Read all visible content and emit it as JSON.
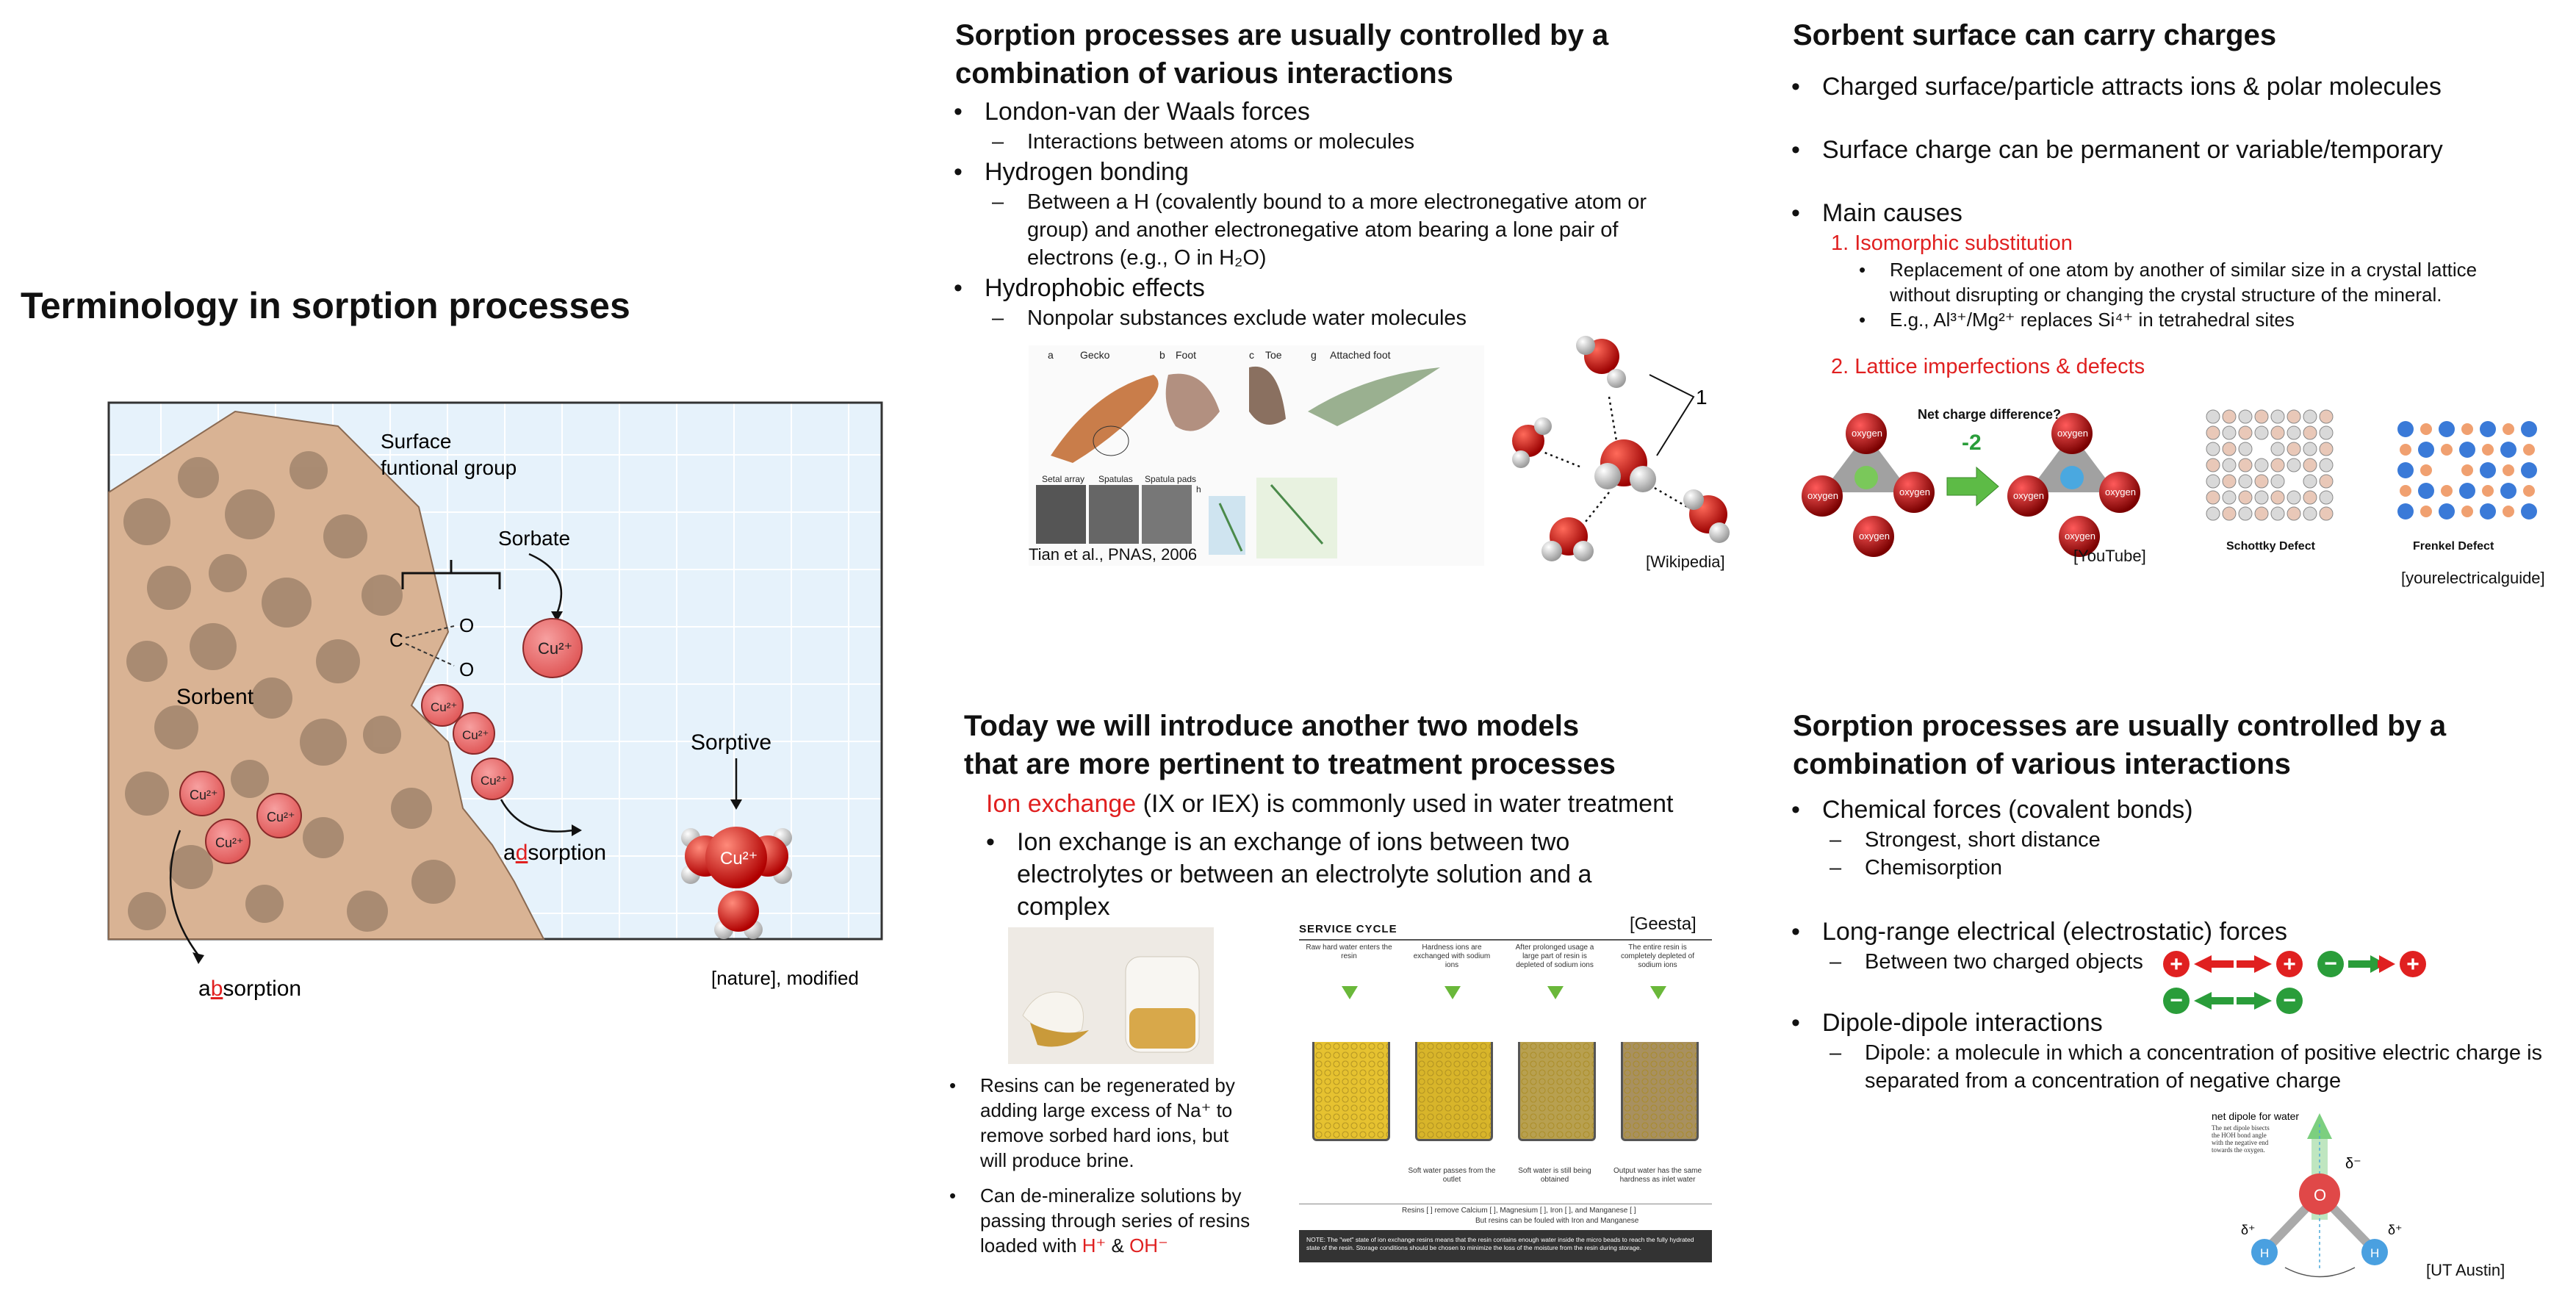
{
  "slide1": {
    "title": "Terminology in sorption processes",
    "labels": {
      "surface_group": "Surface\nfuntional group",
      "sorbate": "Sorbate",
      "sorbent": "Sorbent",
      "sorptive": "Sorptive",
      "ad_a": "a",
      "ad_d": "d",
      "ad_rest": "sorption",
      "ab_a": "a",
      "ab_b": "b",
      "ab_rest": "sorption",
      "cu": "Cu²⁺",
      "c": "C",
      "o": "O"
    },
    "citation": "[nature], modified"
  },
  "slide2": {
    "title": "Sorption processes are usually controlled by a combination of various interactions",
    "items": [
      {
        "label": "London-van der Waals forces",
        "sub": "Interactions between atoms or molecules"
      },
      {
        "label": "Hydrogen bonding",
        "sub": "Between a H (covalently bound to a more electronegative atom or group) and another electronegative atom bearing a lone pair of electrons (e.g., O in H₂O)"
      },
      {
        "label": "Hydrophobic effects",
        "sub": "Nonpolar substances exclude water molecules"
      }
    ],
    "gecko_caption": "Tian et al., PNAS, 2006",
    "gecko_labels": [
      "a",
      "Gecko",
      "b",
      "Foot",
      "c",
      "Toe",
      "g",
      "Attached foot",
      "Setal array",
      "Spatulas",
      "Spatula pads",
      "h"
    ],
    "water_citation": "[Wikipedia]",
    "water_label": "1"
  },
  "slide3": {
    "title": "Sorbent surface can carry charges",
    "bullets": [
      "Charged surface/particle attracts ions & polar molecules",
      "Surface charge can be permanent or variable/temporary",
      "Main causes"
    ],
    "cause1": "1.   Isomorphic substitution",
    "cause1_subs": [
      "Replacement of one atom by another of similar size in a crystal lattice without disrupting or changing the crystal structure of the mineral.",
      "E.g., Al³⁺/Mg²⁺ replaces Si⁴⁺ in tetrahedral sites"
    ],
    "cause2": "2.   Lattice imperfections & defects",
    "net_charge_label": "Net charge difference?",
    "net_charge_value": "-2",
    "oxygen": "oxygen",
    "cite_youtube": "[YouTube]",
    "schottky": "Schottky Defect",
    "frenkel": "Frenkel Defect",
    "cite_guide": "[yourelectricalguide]"
  },
  "slide4": {
    "title_line1": "Today we will introduce another two models",
    "title_line2": "that are more pertinent to treatment processes",
    "ion_exchange": "Ion exchange",
    "ix_rest": " (IX or IEX) is commonly used in water treatment",
    "bullet": "Ion exchange is an exchange of ions between two electrolytes or between an electrolyte solution and a complex",
    "note1": "Resins can be regenerated by adding large excess of Na⁺ to remove sorbed hard ions, but will produce brine.",
    "note2_pre": "Can de-mineralize solutions by passing through series of resins loaded with ",
    "note2_h": "H⁺",
    "note2_amp": " & ",
    "note2_oh": "OH⁻",
    "service_cycle": "SERVICE CYCLE",
    "cite_geesta": "[Geesta]",
    "cycle_steps": [
      "Raw hard water enters the resin",
      "Hardness ions are exchanged with sodium ions",
      "After prolonged usage a large part of resin is depleted of sodium ions",
      "The entire resin is completely depleted of sodium ions"
    ],
    "cycle_outputs": [
      "Soft water passes from the outlet",
      "Soft water is still being obtained",
      "Output water has the same hardness as inlet water"
    ],
    "resin_legend": "Resins [ ] remove Calcium [ ], Magnesium [ ], Iron [ ], and Manganese [ ]",
    "resin_legend2": "But resins can be fouled with Iron and Manganese",
    "note_bar": "NOTE: The \"wet\" state of ion exchange resins means that the resin contains enough water inside the micro beads to reach the fully hydrated state of the resin. Storage conditions should be chosen to minimize the loss of the moisture from the resin during storage."
  },
  "slide5": {
    "title": "Sorption processes are usually controlled by a combination of various interactions",
    "items": [
      {
        "label": "Chemical forces (covalent bonds)",
        "subs": [
          "Strongest, short distance",
          "Chemisorption"
        ]
      },
      {
        "label": "Long-range electrical (electrostatic) forces",
        "subs": [
          "Between two charged objects"
        ]
      },
      {
        "label": "Dipole-dipole interactions",
        "subs": [
          "Dipole: a molecule in which a concentration of positive electric charge is separated from a concentration of negative charge"
        ]
      }
    ],
    "dipole_title": "net dipole for water",
    "dipole_note": "The net dipole bisects the HOH bond angle with the negative end towards the oxygen.",
    "delta_minus": "δ⁻",
    "delta_plus": "δ⁺",
    "cite_ut": "[UT Austin]"
  },
  "colors": {
    "accent_red": "#e02020",
    "green": "#2a9d3a",
    "sorbent": "#d9b394",
    "cu": "#ef6b6b",
    "grid_bg": "#e6f2fb"
  }
}
